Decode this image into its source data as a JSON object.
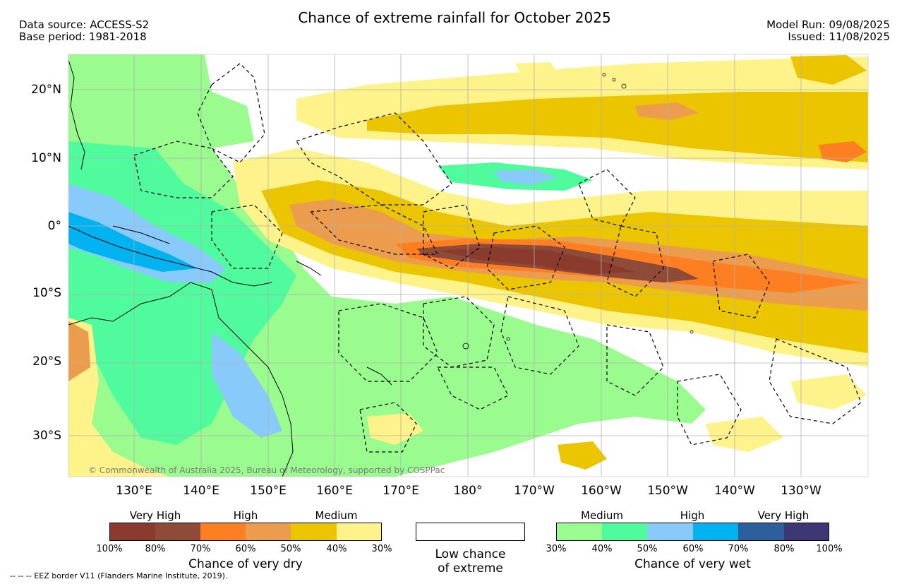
{
  "header": {
    "title": "Chance of extreme rainfall for October 2025",
    "data_source": "Data source: ACCESS-S2",
    "base_period": "Base period: 1981-2018",
    "model_run": "Model Run: 09/08/2025",
    "issued": "Issued: 11/08/2025"
  },
  "map": {
    "lat_labels": [
      "20°N",
      "10°N",
      "0°",
      "10°S",
      "20°S",
      "30°S"
    ],
    "lon_labels": [
      "130°E",
      "140°E",
      "150°E",
      "160°E",
      "170°E",
      "180°",
      "170°W",
      "160°W",
      "150°W",
      "140°W",
      "130°W"
    ],
    "copyright": "© Commonwealth of Australia 2025, Bureau of Meteorology, supported by COSPPac"
  },
  "legend_dry": {
    "title": "Chance of very dry",
    "categories": [
      "Very High",
      "High",
      "Medium"
    ],
    "ticks": [
      "100%",
      "80%",
      "70%",
      "60%",
      "50%",
      "40%",
      "30%"
    ],
    "colors": [
      "#8b3a2e",
      "#8e4b37",
      "#fd7f22",
      "#eb9c4c",
      "#ebc500",
      "#fdf38a"
    ]
  },
  "legend_low": {
    "line1": "Low chance",
    "line2": "of extreme"
  },
  "legend_wet": {
    "title": "Chance of very wet",
    "categories": [
      "Medium",
      "High",
      "Very High"
    ],
    "ticks": [
      "30%",
      "40%",
      "50%",
      "60%",
      "70%",
      "80%",
      "100%"
    ],
    "colors": [
      "#9afb8e",
      "#4ffb9c",
      "#88cbfb",
      "#00b2ef",
      "#2d5f9c",
      "#3d3873"
    ]
  },
  "footnote": "-- -- -- EEZ border V11 (Flanders Marine Institute, 2019)."
}
